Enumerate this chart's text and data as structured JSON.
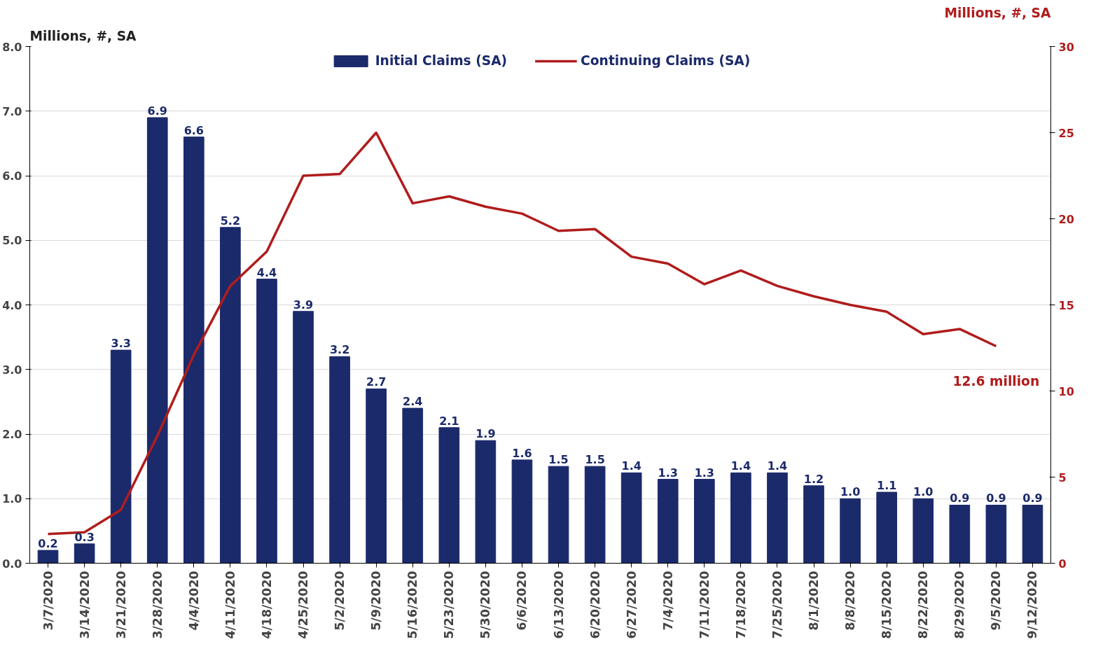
{
  "chart_data": {
    "type": "bar",
    "ylabel": "Millions, #, SA",
    "y2label": "Millions, #, SA",
    "categories": [
      "3/7/2020",
      "3/14/2020",
      "3/21/2020",
      "3/28/2020",
      "4/4/2020",
      "4/11/2020",
      "4/18/2020",
      "4/25/2020",
      "5/2/2020",
      "5/9/2020",
      "5/16/2020",
      "5/23/2020",
      "5/30/2020",
      "6/6/2020",
      "6/13/2020",
      "6/20/2020",
      "6/27/2020",
      "7/4/2020",
      "7/11/2020",
      "7/18/2020",
      "7/25/2020",
      "8/1/2020",
      "8/8/2020",
      "8/15/2020",
      "8/22/2020",
      "8/29/2020",
      "9/5/2020",
      "9/12/2020"
    ],
    "series": [
      {
        "name": "Initial Claims (SA)",
        "color": "#1b2a6b",
        "values": [
          0.2,
          0.3,
          3.3,
          6.9,
          6.6,
          5.2,
          4.4,
          3.9,
          3.2,
          2.7,
          2.4,
          2.1,
          1.9,
          1.6,
          1.5,
          1.5,
          1.4,
          1.3,
          1.3,
          1.4,
          1.4,
          1.2,
          1.0,
          1.1,
          1.0,
          0.9,
          0.9,
          0.9
        ],
        "value_labels": [
          "0.2",
          "0.3",
          "3.3",
          "6.9",
          "6.6",
          "5.2",
          "4.4",
          "3.9",
          "3.2",
          "2.7",
          "2.4",
          "2.1",
          "1.9",
          "1.6",
          "1.5",
          "1.5",
          "1.4",
          "1.3",
          "1.3",
          "1.4",
          "1.4",
          "1.2",
          "1.0",
          "1.1",
          "1.0",
          "0.9",
          "0.9",
          "0.9"
        ]
      },
      {
        "name": "Continuing Claims (SA)",
        "type": "line",
        "axis": "y2",
        "color": "#b01c1c",
        "values": [
          1.7,
          1.8,
          3.1,
          7.4,
          12.1,
          16.1,
          18.1,
          22.5,
          22.6,
          25.0,
          20.9,
          21.3,
          20.7,
          20.3,
          19.3,
          19.4,
          17.8,
          17.4,
          16.2,
          17.0,
          16.1,
          15.5,
          15.0,
          14.6,
          13.3,
          13.6,
          12.6,
          null
        ]
      }
    ],
    "annotations": [
      "12.6 million"
    ],
    "ylim": [
      0,
      8
    ],
    "yticks": [
      {
        "value": 0,
        "label": "0.0"
      },
      {
        "value": 1,
        "label": "1.0"
      },
      {
        "value": 2,
        "label": "2.0"
      },
      {
        "value": 3,
        "label": "3.0"
      },
      {
        "value": 4,
        "label": "4.0"
      },
      {
        "value": 5,
        "label": "5.0"
      },
      {
        "value": 6,
        "label": "6.0"
      },
      {
        "value": 7,
        "label": "7.0"
      },
      {
        "value": 8,
        "label": "8.0"
      }
    ],
    "y2lim": [
      0,
      30
    ],
    "y2ticks": [
      0,
      5,
      10,
      15,
      20,
      25,
      30
    ],
    "grid": "y",
    "legend": "top",
    "marker": "none",
    "line_style": "solid"
  }
}
